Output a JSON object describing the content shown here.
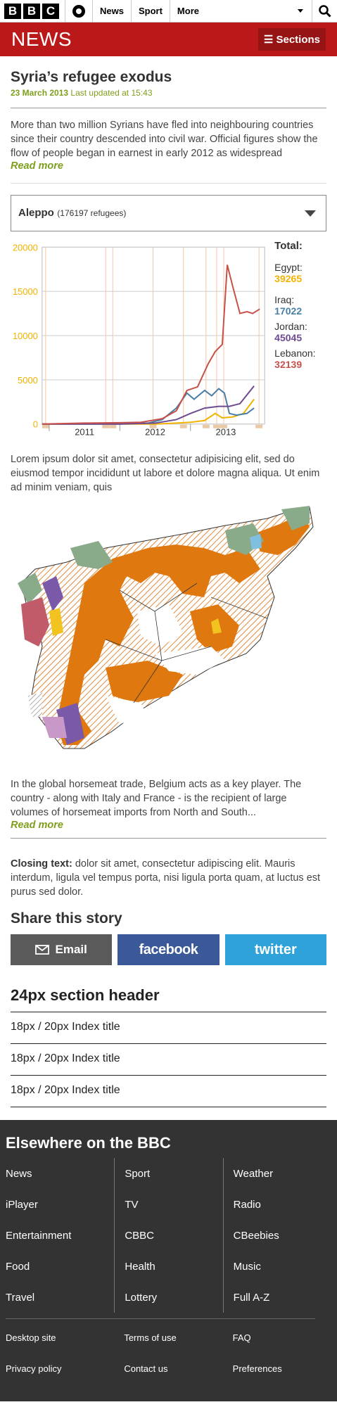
{
  "topbar": {
    "logo": [
      "B",
      "B",
      "C"
    ],
    "links": [
      "News",
      "Sport",
      "More"
    ]
  },
  "newsbar": {
    "logo": "NEWS",
    "sections": "Sections"
  },
  "article": {
    "title": "Syria’s refugee exodus",
    "date": "23 March 2013",
    "updated": "Last updated at 15:43",
    "intro": "More than two million Syrians have fled into neighbouring countries since their country descended into civil war. Official figures show the flow of people began in earnest in early 2012 as widespread",
    "read_more": "Read more",
    "lorem": "Lorem ipsum dolor sit amet, consectetur adipisicing elit, sed do eiusmod tempor incididunt ut labore et dolore magna aliqua. Ut enim ad minim veniam, quis",
    "horsemeat": "In the global horsemeat trade, Belgium acts as a key player. The country - along with Italy and France - is the recipient of large volumes of horsemeat imports from North and South...",
    "read_more_2": "Read more",
    "closing_label": "Closing text:",
    "closing": " dolor sit amet, consectetur adipiscing elit. Mauris interdum, ligula vel tempus porta, nisi ligula porta quam, at luctus est purus sed dolor."
  },
  "dropdown": {
    "city": "Aleppo",
    "count": "(176197 refugees)"
  },
  "legend": {
    "total": "Total:",
    "items": [
      {
        "name": "Egypt:",
        "value": "39265",
        "color": "#f2b200"
      },
      {
        "name": "Iraq:",
        "value": "17022",
        "color": "#4a7fa6"
      },
      {
        "name": "Jordan:",
        "value": "45045",
        "color": "#6e4a93"
      },
      {
        "name": "Lebanon:",
        "value": "32139",
        "color": "#c8504a"
      }
    ]
  },
  "chart_data": {
    "type": "line",
    "x_tick_labels": [
      "2011",
      "2012",
      "2013"
    ],
    "ylim": [
      0,
      20000
    ],
    "yticks": [
      0,
      5000,
      10000,
      15000,
      20000
    ],
    "xlim": [
      2010.4,
      2013.55
    ],
    "grid": true,
    "legend": "right",
    "series": [
      {
        "name": "Egypt",
        "color": "#f2b200",
        "points": [
          [
            2010.4,
            0
          ],
          [
            2011.0,
            0
          ],
          [
            2011.5,
            0
          ],
          [
            2012.0,
            0
          ],
          [
            2012.3,
            100
          ],
          [
            2012.5,
            200
          ],
          [
            2012.7,
            400
          ],
          [
            2012.85,
            1200
          ],
          [
            2012.95,
            700
          ],
          [
            2013.1,
            800
          ],
          [
            2013.25,
            1200
          ],
          [
            2013.4,
            2800
          ]
        ]
      },
      {
        "name": "Iraq",
        "color": "#4a7fa6",
        "points": [
          [
            2010.4,
            0
          ],
          [
            2011.0,
            0
          ],
          [
            2011.5,
            0
          ],
          [
            2011.9,
            100
          ],
          [
            2012.1,
            500
          ],
          [
            2012.3,
            1800
          ],
          [
            2012.45,
            3500
          ],
          [
            2012.55,
            2800
          ],
          [
            2012.7,
            3800
          ],
          [
            2012.8,
            3200
          ],
          [
            2012.9,
            4000
          ],
          [
            2012.98,
            3500
          ],
          [
            2013.05,
            1200
          ],
          [
            2013.15,
            1000
          ],
          [
            2013.3,
            1200
          ],
          [
            2013.4,
            1800
          ]
        ]
      },
      {
        "name": "Jordan",
        "color": "#6e4a93",
        "points": [
          [
            2010.4,
            0
          ],
          [
            2011.0,
            0
          ],
          [
            2011.5,
            0
          ],
          [
            2012.0,
            100
          ],
          [
            2012.3,
            500
          ],
          [
            2012.5,
            1200
          ],
          [
            2012.7,
            1800
          ],
          [
            2012.9,
            2000
          ],
          [
            2013.05,
            2000
          ],
          [
            2013.2,
            2300
          ],
          [
            2013.4,
            4300
          ]
        ]
      },
      {
        "name": "Lebanon",
        "color": "#c8504a",
        "points": [
          [
            2010.4,
            0
          ],
          [
            2011.0,
            100
          ],
          [
            2011.5,
            150
          ],
          [
            2011.8,
            200
          ],
          [
            2012.1,
            600
          ],
          [
            2012.3,
            1500
          ],
          [
            2012.45,
            3800
          ],
          [
            2012.6,
            4200
          ],
          [
            2012.75,
            6800
          ],
          [
            2012.85,
            8200
          ],
          [
            2012.95,
            9000
          ],
          [
            2013.02,
            18000
          ],
          [
            2013.1,
            15500
          ],
          [
            2013.2,
            12500
          ],
          [
            2013.3,
            12700
          ],
          [
            2013.38,
            12500
          ],
          [
            2013.48,
            13000
          ]
        ]
      }
    ],
    "vlines": [
      2010.45,
      2011.3,
      2011.4,
      2011.97,
      2012.4,
      2012.72,
      2012.87,
      2012.97,
      2013.47
    ]
  },
  "share": {
    "title": "Share this story",
    "email": "Email",
    "facebook": "facebook",
    "twitter": "twitter"
  },
  "section": {
    "header": "24px section header",
    "items": [
      "18px / 20px Index title",
      "18px / 20px Index title",
      "18px / 20px Index title"
    ]
  },
  "footer": {
    "title": "Elsewhere on the BBC",
    "col1": [
      "News",
      "iPlayer",
      "Entertainment",
      "Food",
      "Travel"
    ],
    "col2": [
      "Sport",
      "TV",
      "CBBC",
      "Health",
      "Lottery"
    ],
    "col3": [
      "Weather",
      "Radio",
      "CBeebies",
      "Music",
      "Full A-Z"
    ],
    "links1": [
      "Desktop site",
      "Privacy policy"
    ],
    "links2": [
      "Terms of use",
      "Contact us"
    ],
    "links3": [
      "FAQ",
      "Preferences"
    ]
  }
}
